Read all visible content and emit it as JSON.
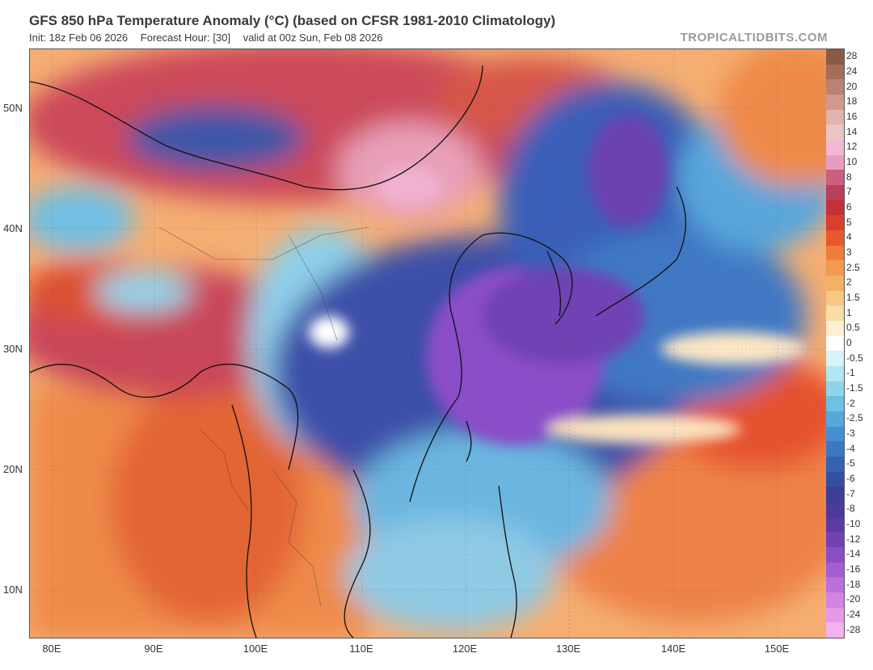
{
  "header": {
    "title": "GFS 850 hPa Temperature Anomaly (°C) (based on CFSR 1981-2010 Climatology)",
    "init": "Init: 18z Feb 06 2026",
    "forecast_hour": "Forecast Hour: [30]",
    "valid": "valid at 00z Sun, Feb 08 2026",
    "brand": "TROPICALTIDBITS.COM"
  },
  "axes": {
    "lat_labels": [
      "50N",
      "40N",
      "30N",
      "20N",
      "10N"
    ],
    "lon_labels": [
      "80E",
      "90E",
      "100E",
      "110E",
      "120E",
      "130E",
      "140E",
      "150E"
    ]
  },
  "colorbar": {
    "labels": [
      "28",
      "24",
      "20",
      "18",
      "16",
      "14",
      "12",
      "10",
      "8",
      "7",
      "6",
      "5",
      "4",
      "3",
      "2.5",
      "2",
      "1.5",
      "1",
      "0.5",
      "0",
      "-0.5",
      "-1",
      "-1.5",
      "-2",
      "-2.5",
      "-3",
      "-4",
      "-5",
      "-6",
      "-7",
      "-8",
      "-10",
      "-12",
      "-14",
      "-16",
      "-18",
      "-20",
      "-24",
      "-28"
    ],
    "colors": [
      "#8a5a44",
      "#a36d58",
      "#b98272",
      "#cf9a8d",
      "#e0b3ab",
      "#eac6c4",
      "#f2b8d2",
      "#e89cc4",
      "#c9607e",
      "#b8405a",
      "#c62f3a",
      "#dc3e2e",
      "#e8582d",
      "#ef7c3a",
      "#f29a4f",
      "#f4b066",
      "#f7c784",
      "#f9dca6",
      "#fcefd3",
      "#ffffff",
      "#d8f3f7",
      "#b2e6f0",
      "#8fd4ea",
      "#6ec0e4",
      "#56a7db",
      "#4490d0",
      "#3b78c4",
      "#3562b3",
      "#344fa2",
      "#3c3f96",
      "#4a3a99",
      "#5b3aa3",
      "#7242b5",
      "#8a4fc6",
      "#a35ed2",
      "#bb70dc",
      "#d284e2",
      "#e59ae8",
      "#f2b2ec"
    ]
  }
}
